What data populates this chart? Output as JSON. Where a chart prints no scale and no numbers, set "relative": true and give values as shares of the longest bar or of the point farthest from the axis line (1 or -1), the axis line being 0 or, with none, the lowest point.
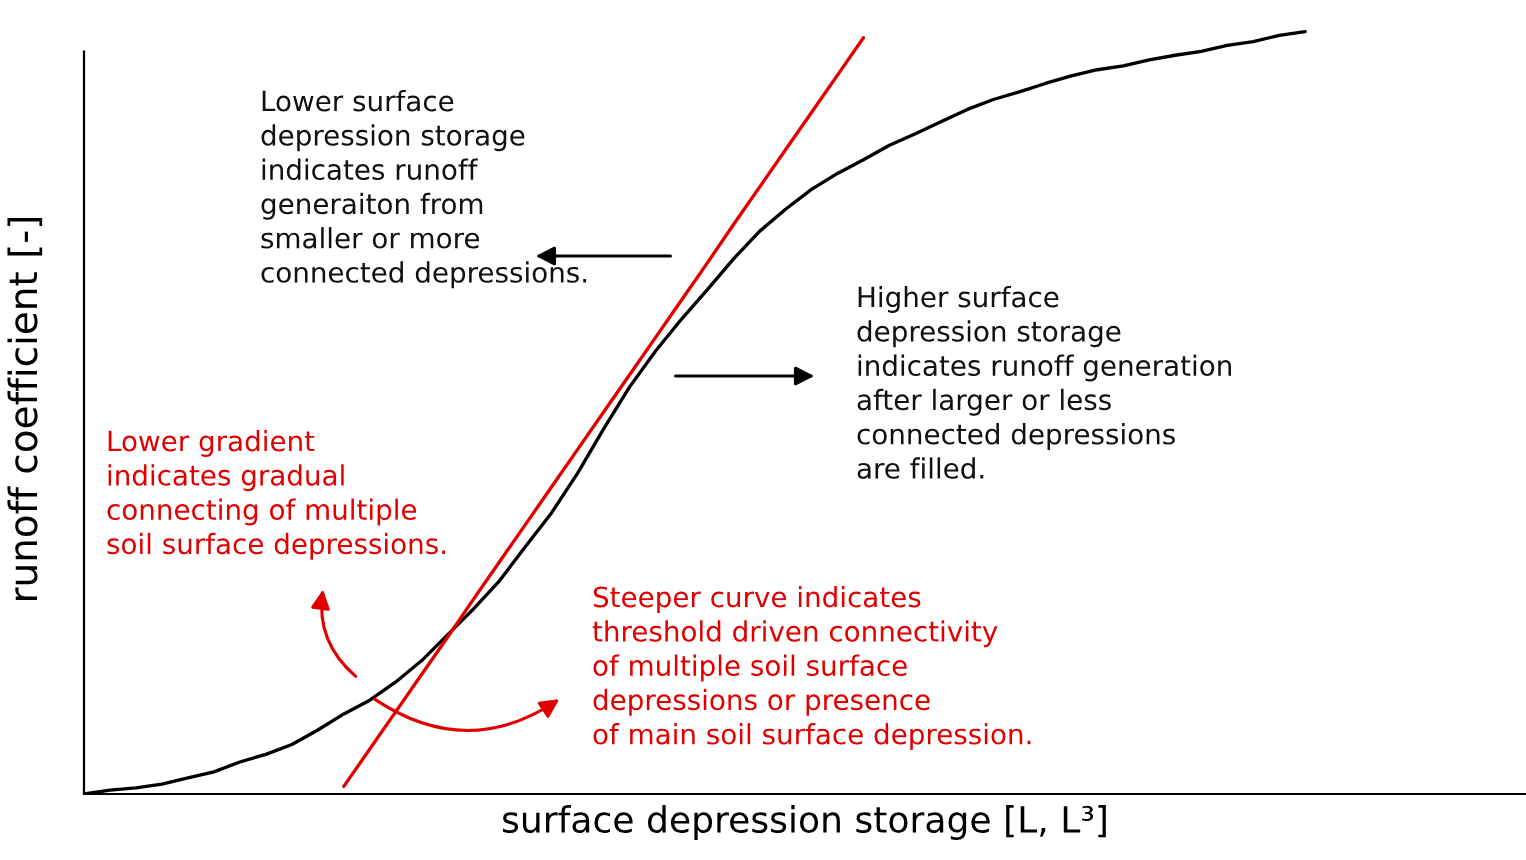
{
  "chart_data": {
    "type": "line",
    "relative": true,
    "xlabel": "surface depression storage [L, L³]",
    "ylabel": "runoff coefficient [-]",
    "categories": [
      null,
      null,
      null,
      null,
      null,
      null,
      null,
      null,
      null,
      null,
      null,
      null,
      null,
      null,
      null,
      null,
      null,
      null,
      null,
      null,
      null,
      null,
      null,
      null,
      null,
      null,
      null,
      null,
      null,
      null,
      null,
      null,
      null,
      null,
      null,
      null,
      null,
      null,
      null,
      null,
      null,
      null,
      null,
      null,
      null,
      null,
      null,
      null,
      null,
      null,
      null,
      null,
      null,
      null,
      null,
      null
    ],
    "series": [
      {
        "color": "#000000",
        "values": [
          0,
          0.005,
          0.008,
          0.013,
          0.021,
          0.029,
          0.042,
          0.052,
          0.065,
          0.084,
          0.105,
          0.123,
          0.147,
          0.175,
          0.209,
          0.243,
          0.28,
          0.325,
          0.369,
          0.421,
          0.479,
          0.534,
          0.581,
          0.623,
          0.662,
          0.702,
          0.738,
          0.767,
          0.793,
          0.814,
          0.832,
          0.851,
          0.866,
          0.882,
          0.898,
          0.911,
          0.921,
          0.932,
          0.942,
          0.95,
          0.955,
          0.963,
          0.969,
          0.974,
          0.982,
          0.987,
          0.995,
          1.0,
          null,
          null,
          null,
          null,
          null,
          null,
          null,
          null
        ]
      },
      {
        "color": "#e00000",
        "values": [
          null,
          null,
          null,
          null,
          null,
          null,
          null,
          null,
          null,
          null,
          0.01,
          0.059,
          0.108,
          0.157,
          0.206,
          0.256,
          0.305,
          0.354,
          0.403,
          0.452,
          0.501,
          0.55,
          0.599,
          0.648,
          0.697,
          0.747,
          0.796,
          0.845,
          0.894,
          0.943,
          0.992,
          null,
          null,
          null,
          null,
          null,
          null,
          null,
          null,
          null,
          null,
          null,
          null,
          null,
          null,
          null,
          null,
          null,
          null,
          null,
          null,
          null,
          null,
          null,
          null,
          null
        ]
      }
    ],
    "annotations": [
      "Lower surface\ndepression storage\nindicates runoff\ngeneraiton from\nsmaller or more\nconnected depressions.",
      "Higher surface\ndepression storage\nindicates runoff generation\nafter larger or less\nconnected depressions\nare filled.",
      "Lower gradient\nindicates gradual\nconnecting of multiple\nsoil surface depressions.",
      "Steeper curve indicates\nthreshold driven connectivity\nof multiple soil surface\ndepressions or presence\nof main soil surface depression."
    ]
  }
}
